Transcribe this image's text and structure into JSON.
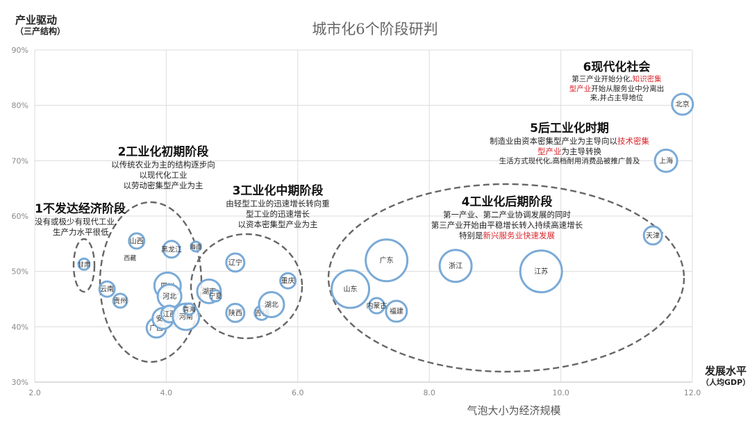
{
  "y_title": "产业驱动",
  "y_title_sub": "（三产结构）",
  "x_title": "发展水平",
  "x_title_sub": "（人均GDP）",
  "chart_data": {
    "type": "bubble",
    "title": "城市化6个阶段研判",
    "xlabel": "气泡大小为经济规模",
    "xlim": [
      2.0,
      12.0
    ],
    "ylim": [
      30,
      90
    ],
    "x_ticks": [
      "2.0",
      "4.0",
      "6.0",
      "8.0",
      "10.0",
      "12.0"
    ],
    "y_ticks": [
      "30%",
      "40%",
      "50%",
      "60%",
      "70%",
      "80%",
      "90%"
    ],
    "grid": true,
    "bubble_color": "#7aaad6",
    "points": [
      {
        "name": "甘肃",
        "x": 2.75,
        "y": 51.3,
        "size": 8
      },
      {
        "name": "云南",
        "x": 3.1,
        "y": 46.8,
        "size": 11
      },
      {
        "name": "贵州",
        "x": 3.3,
        "y": 44.7,
        "size": 10
      },
      {
        "name": "山西",
        "x": 3.55,
        "y": 55.5,
        "size": 11
      },
      {
        "name": "西藏",
        "x": 3.45,
        "y": 52.5,
        "size": 0
      },
      {
        "name": "黑龙江",
        "x": 4.08,
        "y": 54.0,
        "size": 12
      },
      {
        "name": "海南",
        "x": 4.45,
        "y": 54.5,
        "size": 7
      },
      {
        "name": "四川",
        "x": 4.02,
        "y": 47.4,
        "size": 19
      },
      {
        "name": "河北",
        "x": 4.05,
        "y": 45.5,
        "size": 17
      },
      {
        "name": "广西",
        "x": 3.85,
        "y": 39.8,
        "size": 14
      },
      {
        "name": "安徽",
        "x": 3.95,
        "y": 41.5,
        "size": 15
      },
      {
        "name": "江西",
        "x": 4.05,
        "y": 42.3,
        "size": 12
      },
      {
        "name": "河南",
        "x": 4.3,
        "y": 41.8,
        "size": 19
      },
      {
        "name": "青海",
        "x": 4.35,
        "y": 43.2,
        "size": 8
      },
      {
        "name": "湖南",
        "x": 4.65,
        "y": 46.4,
        "size": 17
      },
      {
        "name": "宁夏",
        "x": 4.75,
        "y": 45.6,
        "size": 8
      },
      {
        "name": "辽宁",
        "x": 5.05,
        "y": 51.6,
        "size": 13
      },
      {
        "name": "陕西",
        "x": 5.05,
        "y": 42.5,
        "size": 13
      },
      {
        "name": "吉林",
        "x": 5.45,
        "y": 42.5,
        "size": 10
      },
      {
        "name": "湖北",
        "x": 5.6,
        "y": 44.0,
        "size": 18
      },
      {
        "name": "重庆",
        "x": 5.85,
        "y": 48.3,
        "size": 11
      },
      {
        "name": "山东",
        "x": 6.8,
        "y": 46.8,
        "size": 27
      },
      {
        "name": "广东",
        "x": 7.35,
        "y": 52.0,
        "size": 30
      },
      {
        "name": "内蒙古",
        "x": 7.2,
        "y": 43.8,
        "size": 11
      },
      {
        "name": "福建",
        "x": 7.5,
        "y": 42.8,
        "size": 15
      },
      {
        "name": "浙江",
        "x": 8.4,
        "y": 51.0,
        "size": 23
      },
      {
        "name": "江苏",
        "x": 9.7,
        "y": 50.0,
        "size": 30
      },
      {
        "name": "天津",
        "x": 11.4,
        "y": 56.5,
        "size": 13
      },
      {
        "name": "上海",
        "x": 11.6,
        "y": 70.0,
        "size": 16
      },
      {
        "name": "北京",
        "x": 11.85,
        "y": 80.2,
        "size": 15
      }
    ],
    "annotations": [
      {
        "id": "s1",
        "heading": "1不发达经济阶段",
        "lines": [
          {
            "text": "没有或极少有现代工业,",
            "red": false
          },
          {
            "text": "生产力水平很低",
            "red": true
          }
        ]
      },
      {
        "id": "s2",
        "heading": "2工业化初期阶段",
        "lines": [
          {
            "text": "以传统农业为主的结构逐步向",
            "red": false
          },
          {
            "text": "以现代化工业",
            "red": false
          },
          {
            "text": "以劳动密集型产业为主",
            "red": true
          }
        ]
      },
      {
        "id": "s3",
        "heading": "3工业化中期阶段",
        "lines": [
          {
            "text": "由轻型工业的迅速增长转向重",
            "red": false
          },
          {
            "text": "型工业的迅速增长",
            "red": false
          },
          {
            "text": "以资本密集型产业为主",
            "red": true
          }
        ]
      },
      {
        "id": "s4",
        "heading": "4工业化后期阶段",
        "lines": [
          {
            "text": "第一产业、第二产业协调发展的同时",
            "red": false
          },
          {
            "text": "第三产业开始由平稳增长转入持续高速增长",
            "red": false
          }
        ],
        "last_prefix": "特别是",
        "last_red": "新兴服务业快速发展"
      },
      {
        "id": "s5",
        "heading": "5后工业化时期",
        "line1_prefix": "制造业由资本密集型产业为主导向以",
        "line1_red": "技术密集",
        "line2_red": "型产业",
        "line2_suffix": "为主导转换",
        "line3": "生活方式现代化,高档耐用消费品被推广普及"
      },
      {
        "id": "s6",
        "heading": "6现代化社会",
        "line1_prefix": "第三产业开始分化,",
        "line1_red": "知识密集",
        "line2_red": "型产业",
        "line2_suffix": "开始从服务业中分离出",
        "line3": "来,并占主导地位"
      }
    ]
  }
}
